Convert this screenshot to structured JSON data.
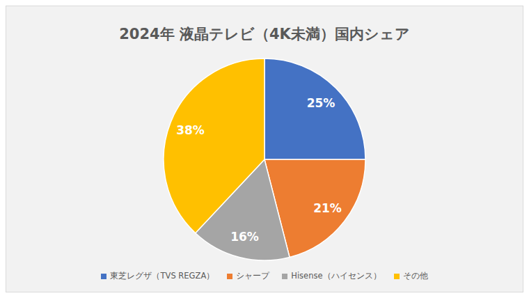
{
  "chart_data": {
    "type": "pie",
    "title": "2024年 液晶テレビ（4K未満）国内シェア",
    "categories": [
      "東芝レグザ（TVS REGZA）",
      "シャープ",
      "Hisense（ハイセンス）",
      "その他"
    ],
    "values": [
      25,
      21,
      16,
      38
    ],
    "value_labels": [
      "25%",
      "21%",
      "16%",
      "38%"
    ],
    "colors": [
      "#4472c4",
      "#ed7d31",
      "#a5a5a5",
      "#ffc000"
    ],
    "data_labels": true,
    "legend": "bottom"
  }
}
